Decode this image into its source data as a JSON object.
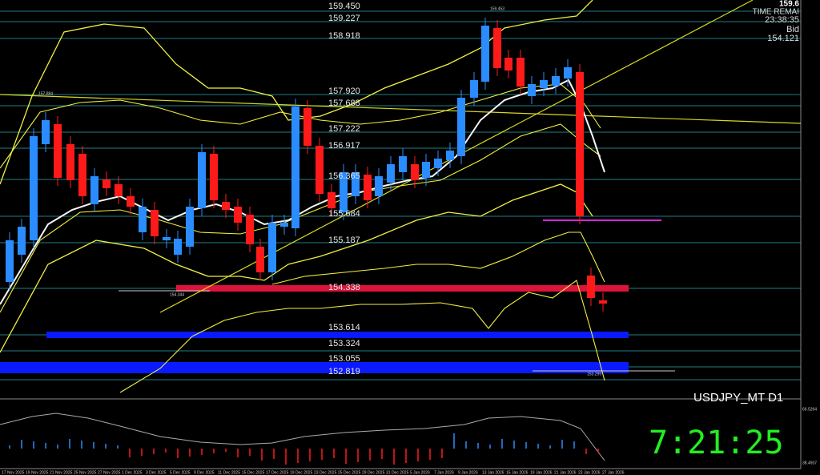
{
  "info": {
    "price": "159.6",
    "time_label": "TIME REMAI",
    "time": "23:38:35",
    "bid_label": "Bid",
    "bid": "154.121"
  },
  "levels": [
    "159.450",
    "159.227",
    "158.918",
    "157.920",
    "157.688",
    "157.222",
    "156.917",
    "156.365",
    "155.684",
    "155.187",
    "154.338",
    "153.614",
    "153.324",
    "153.055",
    "152.819"
  ],
  "markers": [
    "157.884",
    "154.344",
    "159.453",
    "153.299"
  ],
  "symbol": "USDJPY_MT D1",
  "clock": "7:21:25",
  "indicator_scale": [
    "66.5264",
    "38.4937"
  ],
  "dates": [
    "17 Nov 2025",
    "19 Nov 2025",
    "21 Nov 2025",
    "25 Nov 2025",
    "27 Nov 2025",
    "1 Dec 2025",
    "3 Dec 2025",
    "5 Dec 2025",
    "9 Dec 2025",
    "11 Dec 2025",
    "15 Dec 2025",
    "17 Dec 2025",
    "19 Dec 2025",
    "23 Dec 2025",
    "25 Dec 2025",
    "29 Dec 2025",
    "31 Dec 2025",
    "5 Jan 2026",
    "7 Jan 2026",
    "9 Jan 2026",
    "13 Jan 2026",
    "15 Jan 2026",
    "19 Jan 2026",
    "21 Jan 2026",
    "23 Jan 2026",
    "27 Jan 2026"
  ]
}
